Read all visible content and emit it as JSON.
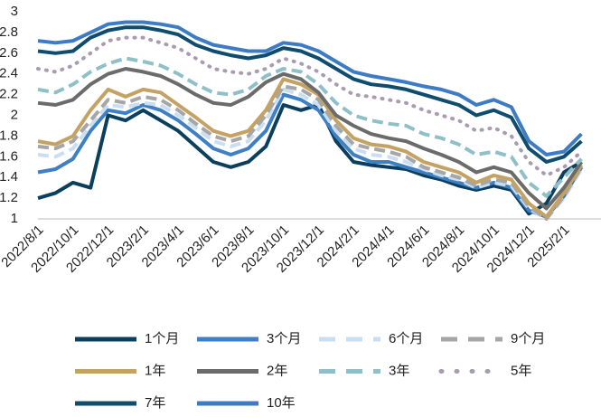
{
  "chart_data": {
    "type": "line",
    "categories": [
      "2022/8/1",
      null,
      "2022/10/1",
      null,
      "2022/12/1",
      null,
      "2023/2/1",
      null,
      "2023/4/1",
      null,
      "2023/6/1",
      null,
      "2023/8/1",
      null,
      "2023/10/1",
      null,
      "2023/12/1",
      null,
      "2024/2/1",
      null,
      "2024/4/1",
      null,
      "2024/6/1",
      null,
      "2024/8/1",
      null,
      "2024/10/1",
      null,
      "2024/12/1",
      null,
      "2025/2/1",
      null
    ],
    "ylim": [
      1,
      3
    ],
    "yticks": [
      1,
      {
        "value": 1.2,
        "label": "1.2"
      },
      {
        "value": 1.4,
        "label": "1.4"
      },
      {
        "value": 1.6,
        "label": "1.6"
      },
      {
        "value": 1.8,
        "label": "1.8"
      },
      2,
      {
        "value": 2.2,
        "label": "2.2"
      },
      {
        "value": 2.4,
        "label": "2.4"
      },
      {
        "value": 2.6,
        "label": "2.6"
      },
      {
        "value": 2.8,
        "label": "2.8"
      },
      3
    ],
    "grid": false,
    "legend": "bottom",
    "series": [
      {
        "name": "1个月",
        "color": "#0b3f5e",
        "style": "solid",
        "values": [
          1.2,
          1.25,
          1.35,
          1.3,
          2.0,
          1.95,
          2.05,
          1.95,
          1.85,
          1.7,
          1.55,
          1.5,
          1.55,
          1.7,
          2.1,
          2.05,
          2.1,
          1.75,
          1.55,
          1.52,
          1.5,
          1.48,
          1.42,
          1.38,
          1.32,
          1.28,
          1.32,
          1.28,
          1.05,
          1.15,
          1.45,
          1.55
        ]
      },
      {
        "name": "3个月",
        "color": "#3f7fc4",
        "style": "solid",
        "values": [
          1.45,
          1.48,
          1.58,
          1.85,
          2.05,
          2.02,
          2.1,
          2.05,
          1.95,
          1.82,
          1.68,
          1.62,
          1.68,
          1.85,
          2.2,
          2.15,
          2.05,
          1.8,
          1.62,
          1.55,
          1.55,
          1.5,
          1.45,
          1.4,
          1.35,
          1.3,
          1.35,
          1.3,
          1.08,
          1.02,
          1.22,
          1.5
        ]
      },
      {
        "name": "6个月",
        "color": "#c9def2",
        "style": "dashed",
        "values": [
          1.62,
          1.6,
          1.68,
          1.9,
          2.1,
          2.08,
          2.12,
          2.1,
          2.0,
          1.88,
          1.75,
          1.7,
          1.75,
          1.95,
          2.25,
          2.2,
          2.1,
          1.85,
          1.68,
          1.62,
          1.6,
          1.55,
          1.48,
          1.42,
          1.38,
          1.3,
          1.35,
          1.32,
          1.1,
          1.0,
          1.2,
          1.48
        ]
      },
      {
        "name": "9个月",
        "color": "#a6a6a6",
        "style": "dashed",
        "values": [
          1.7,
          1.68,
          1.75,
          1.95,
          2.15,
          2.12,
          2.18,
          2.15,
          2.05,
          1.92,
          1.8,
          1.75,
          1.8,
          2.0,
          2.28,
          2.25,
          2.15,
          1.9,
          1.72,
          1.68,
          1.65,
          1.6,
          1.5,
          1.45,
          1.4,
          1.32,
          1.38,
          1.35,
          1.12,
          1.0,
          1.22,
          1.5
        ]
      },
      {
        "name": "1年",
        "color": "#c4a263",
        "style": "solid",
        "values": [
          1.75,
          1.72,
          1.8,
          2.05,
          2.25,
          2.18,
          2.25,
          2.22,
          2.1,
          1.98,
          1.85,
          1.8,
          1.85,
          2.05,
          2.35,
          2.3,
          2.2,
          1.95,
          1.78,
          1.72,
          1.7,
          1.65,
          1.55,
          1.5,
          1.45,
          1.35,
          1.42,
          1.38,
          1.15,
          1.02,
          1.25,
          1.52
        ]
      },
      {
        "name": "2年",
        "color": "#6b6b6b",
        "style": "solid",
        "values": [
          2.12,
          2.1,
          2.15,
          2.3,
          2.4,
          2.45,
          2.42,
          2.38,
          2.3,
          2.2,
          2.12,
          2.1,
          2.18,
          2.32,
          2.4,
          2.35,
          2.22,
          2.0,
          1.9,
          1.82,
          1.78,
          1.75,
          1.68,
          1.62,
          1.55,
          1.45,
          1.5,
          1.45,
          1.25,
          1.1,
          1.3,
          1.55
        ]
      },
      {
        "name": "3年",
        "color": "#8fc0c8",
        "style": "dashed",
        "values": [
          2.25,
          2.22,
          2.3,
          2.42,
          2.5,
          2.55,
          2.52,
          2.48,
          2.4,
          2.3,
          2.22,
          2.2,
          2.25,
          2.38,
          2.45,
          2.42,
          2.3,
          2.12,
          2.0,
          1.95,
          1.92,
          1.9,
          1.82,
          1.78,
          1.72,
          1.62,
          1.65,
          1.6,
          1.35,
          1.22,
          1.4,
          1.58
        ]
      },
      {
        "name": "5年",
        "color": "#a99bb0",
        "style": "dotted",
        "values": [
          2.45,
          2.42,
          2.48,
          2.6,
          2.72,
          2.75,
          2.75,
          2.7,
          2.65,
          2.55,
          2.45,
          2.42,
          2.4,
          2.45,
          2.55,
          2.5,
          2.42,
          2.3,
          2.2,
          2.18,
          2.15,
          2.12,
          2.05,
          2.0,
          1.95,
          1.85,
          1.88,
          1.8,
          1.55,
          1.42,
          1.5,
          1.65
        ]
      },
      {
        "name": "7年",
        "color": "#0f4c6e",
        "style": "solid",
        "values": [
          2.62,
          2.6,
          2.62,
          2.75,
          2.82,
          2.85,
          2.85,
          2.82,
          2.78,
          2.68,
          2.62,
          2.58,
          2.55,
          2.58,
          2.65,
          2.62,
          2.55,
          2.45,
          2.35,
          2.3,
          2.28,
          2.25,
          2.2,
          2.15,
          2.1,
          2.0,
          2.05,
          1.98,
          1.68,
          1.55,
          1.6,
          1.75
        ]
      },
      {
        "name": "10年",
        "color": "#3d7cc4",
        "style": "solid",
        "values": [
          2.72,
          2.7,
          2.72,
          2.8,
          2.88,
          2.9,
          2.9,
          2.88,
          2.85,
          2.75,
          2.68,
          2.65,
          2.62,
          2.62,
          2.7,
          2.68,
          2.62,
          2.52,
          2.42,
          2.38,
          2.35,
          2.32,
          2.28,
          2.25,
          2.2,
          2.1,
          2.15,
          2.08,
          1.75,
          1.62,
          1.65,
          1.82
        ]
      }
    ]
  }
}
